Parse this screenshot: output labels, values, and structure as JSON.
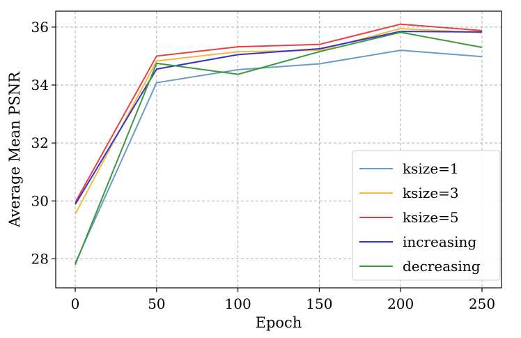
{
  "chart_data": {
    "type": "line",
    "title": "",
    "xlabel": "Epoch",
    "ylabel": "Average Mean PSNR",
    "x": [
      0,
      50,
      100,
      150,
      200,
      250
    ],
    "xlim": [
      -12,
      262
    ],
    "ylim": [
      27.0,
      36.55
    ],
    "xticks": [
      0,
      50,
      100,
      150,
      200,
      250
    ],
    "xtick_labels": [
      "0",
      "50",
      "100",
      "150",
      "200",
      "250"
    ],
    "yticks": [
      28,
      30,
      32,
      34,
      36
    ],
    "ytick_labels": [
      "28",
      "30",
      "32",
      "34",
      "36"
    ],
    "grid": true,
    "legend_position": "lower-right",
    "series": [
      {
        "name": "ksize=1",
        "color": "#6b9bc7",
        "values": [
          27.85,
          34.08,
          34.53,
          34.73,
          35.2,
          34.98
        ]
      },
      {
        "name": "ksize=3",
        "color": "#f5b942",
        "values": [
          29.55,
          34.83,
          35.15,
          35.2,
          35.95,
          35.8
        ]
      },
      {
        "name": "ksize=5",
        "color": "#e8403f",
        "values": [
          29.95,
          35.0,
          35.32,
          35.4,
          36.1,
          35.88
        ]
      },
      {
        "name": "increasing",
        "color": "#3333cc",
        "values": [
          29.88,
          34.55,
          35.05,
          35.25,
          35.85,
          35.83
        ]
      },
      {
        "name": "decreasing",
        "color": "#3c9a3c",
        "values": [
          27.8,
          34.75,
          34.37,
          35.15,
          35.82,
          35.3
        ]
      }
    ]
  }
}
